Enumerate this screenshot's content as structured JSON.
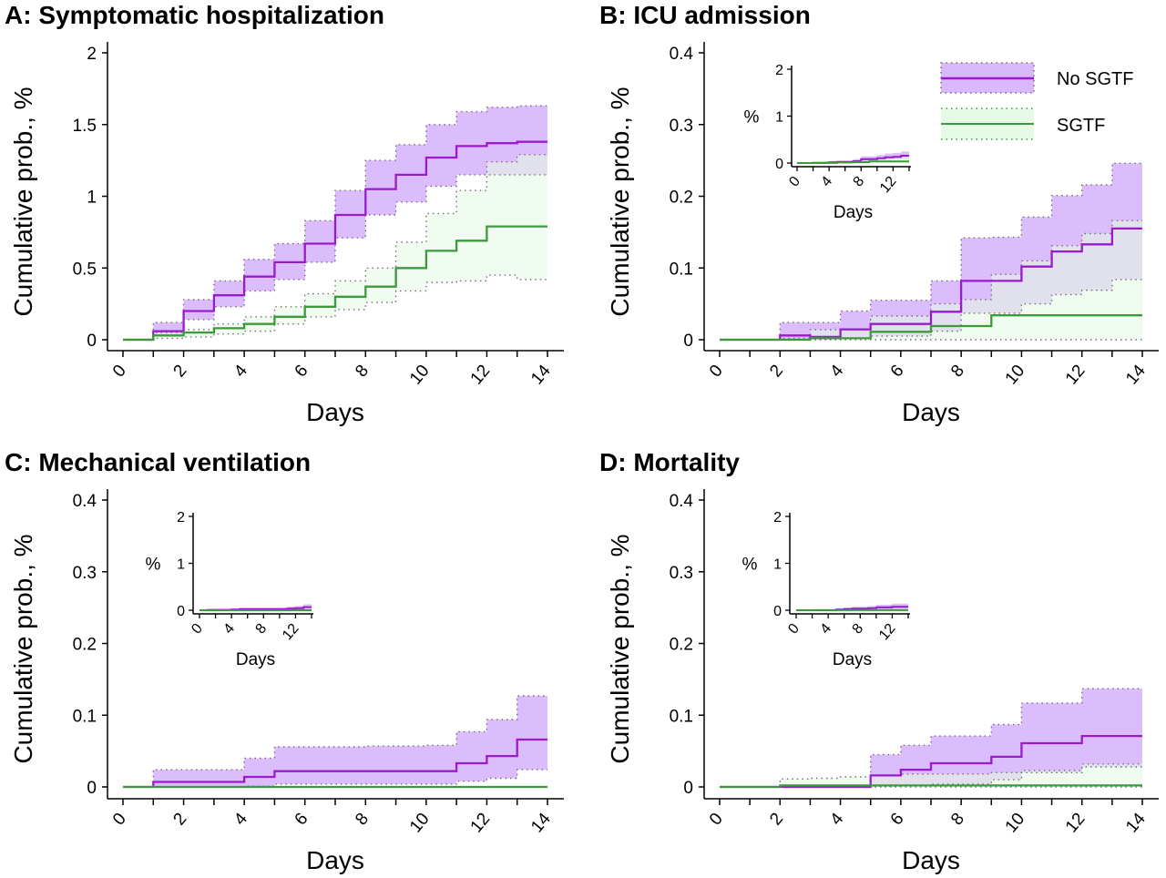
{
  "legend": {
    "items": [
      "No SGTF",
      "SGTF"
    ],
    "placement": "top-right of panel B"
  },
  "colors": {
    "no_sgtf_line": "#9a1bcc",
    "no_sgtf_fill": "#d9b8fc",
    "sgtf_line": "#3c9a3c",
    "sgtf_fill": "#e4fae4",
    "ci_dotted": "#7a6a7a"
  },
  "chart_data": [
    {
      "type": "line",
      "step": true,
      "title": "A: Symptomatic hospitalization",
      "xlabel": "Days",
      "ylabel": "Cumulative prob., %",
      "xlim": [
        0,
        14
      ],
      "ylim": [
        0,
        2
      ],
      "xticks": [
        0,
        1,
        2,
        3,
        4,
        5,
        6,
        7,
        8,
        9,
        10,
        11,
        12,
        13,
        14
      ],
      "xticklabels": [
        "0",
        "2",
        "4",
        "6",
        "8",
        "10",
        "12",
        "14"
      ],
      "yticks": [
        0,
        0.5,
        1,
        1.5,
        2
      ],
      "yticklabels": [
        "0",
        "0.5",
        "1",
        "1.5",
        "2"
      ],
      "x": [
        0,
        1,
        2,
        3,
        4,
        5,
        6,
        7,
        8,
        9,
        10,
        11,
        12,
        13
      ],
      "series": [
        {
          "name": "No SGTF",
          "values": [
            0,
            0.06,
            0.2,
            0.31,
            0.44,
            0.54,
            0.67,
            0.87,
            1.05,
            1.15,
            1.27,
            1.35,
            1.37,
            1.38
          ],
          "upper": [
            0,
            0.12,
            0.28,
            0.41,
            0.56,
            0.67,
            0.83,
            1.04,
            1.25,
            1.36,
            1.5,
            1.59,
            1.62,
            1.63
          ],
          "lower": [
            0,
            0.03,
            0.14,
            0.23,
            0.34,
            0.42,
            0.54,
            0.71,
            0.87,
            0.96,
            1.07,
            1.15,
            1.15,
            1.15
          ]
        },
        {
          "name": "SGTF",
          "values": [
            0,
            0.03,
            0.05,
            0.08,
            0.11,
            0.16,
            0.23,
            0.3,
            0.37,
            0.5,
            0.62,
            0.69,
            0.79,
            0.79
          ],
          "upper": [
            0,
            0.05,
            0.07,
            0.11,
            0.16,
            0.23,
            0.32,
            0.41,
            0.5,
            0.68,
            0.88,
            1.04,
            1.24,
            1.29
          ],
          "lower": [
            0,
            0.01,
            0.02,
            0.04,
            0.06,
            0.11,
            0.16,
            0.21,
            0.26,
            0.34,
            0.4,
            0.41,
            0.45,
            0.42
          ]
        }
      ]
    },
    {
      "type": "line",
      "step": true,
      "title": "B: ICU admission",
      "xlabel": "Days",
      "ylabel": "Cumulative prob., %",
      "xlim": [
        0,
        14
      ],
      "ylim": [
        0,
        0.4
      ],
      "xticks": [
        0,
        1,
        2,
        3,
        4,
        5,
        6,
        7,
        8,
        9,
        10,
        11,
        12,
        13,
        14
      ],
      "xticklabels": [
        "0",
        "2",
        "4",
        "6",
        "8",
        "10",
        "12",
        "14"
      ],
      "yticks": [
        0,
        0.1,
        0.2,
        0.3,
        0.4
      ],
      "yticklabels": [
        "0",
        "0.1",
        "0.2",
        "0.3",
        "0.4"
      ],
      "inset": {
        "ylabel": "%",
        "xlabel": "Days",
        "ylim": [
          0,
          2
        ],
        "yticklabels": [
          "0",
          "1",
          "2"
        ],
        "xticklabels": [
          "0",
          "4",
          "8",
          "12"
        ]
      },
      "x": [
        0,
        1,
        2,
        3,
        4,
        5,
        6,
        7,
        8,
        9,
        10,
        11,
        12,
        13
      ],
      "series": [
        {
          "name": "No SGTF",
          "values": [
            0,
            0,
            0.006,
            0.004,
            0.0145,
            0.022,
            0.022,
            0.039,
            0.082,
            0.082,
            0.102,
            0.123,
            0.133,
            0.155
          ],
          "upper": [
            0,
            0,
            0.024,
            0.024,
            0.04,
            0.055,
            0.055,
            0.082,
            0.142,
            0.143,
            0.171,
            0.201,
            0.216,
            0.246
          ],
          "lower": [
            0,
            0,
            0,
            0.001,
            0.002,
            0.005,
            0.005,
            0.012,
            0.037,
            0.037,
            0.05,
            0.063,
            0.069,
            0.084
          ]
        },
        {
          "name": "SGTF",
          "values": [
            0,
            0,
            0,
            0.002,
            0.002,
            0.011,
            0.011,
            0.019,
            0.019,
            0.034,
            0.034,
            0.034,
            0.034,
            0.034
          ],
          "upper": [
            0,
            0,
            0.002,
            0.014,
            0.014,
            0.033,
            0.033,
            0.05,
            0.056,
            0.091,
            0.11,
            0.131,
            0.148,
            0.166
          ],
          "lower": [
            0,
            0,
            0,
            0,
            0,
            0,
            0,
            0,
            0,
            0,
            0,
            0,
            0,
            0
          ]
        }
      ]
    },
    {
      "type": "line",
      "step": true,
      "title": "C: Mechanical ventilation",
      "xlabel": "Days",
      "ylabel": "Cumulative prob., %",
      "xlim": [
        0,
        14
      ],
      "ylim": [
        0,
        0.4
      ],
      "xticks": [
        0,
        1,
        2,
        3,
        4,
        5,
        6,
        7,
        8,
        9,
        10,
        11,
        12,
        13,
        14
      ],
      "xticklabels": [
        "0",
        "2",
        "4",
        "6",
        "8",
        "10",
        "12",
        "14"
      ],
      "yticks": [
        0,
        0.1,
        0.2,
        0.3,
        0.4
      ],
      "yticklabels": [
        "0",
        "0.1",
        "0.2",
        "0.3",
        "0.4"
      ],
      "inset": {
        "ylabel": "%",
        "xlabel": "Days",
        "ylim": [
          0,
          2
        ],
        "yticklabels": [
          "0",
          "1",
          "2"
        ],
        "xticklabels": [
          "0",
          "4",
          "8",
          "12"
        ]
      },
      "x": [
        0,
        1,
        2,
        3,
        4,
        5,
        6,
        7,
        8,
        9,
        10,
        11,
        12,
        13
      ],
      "series": [
        {
          "name": "No SGTF",
          "values": [
            0,
            0.007,
            0.007,
            0.007,
            0.014,
            0.022,
            0.022,
            0.022,
            0.022,
            0.022,
            0.022,
            0.033,
            0.043,
            0.066
          ],
          "upper": [
            0,
            0.024,
            0.024,
            0.024,
            0.04,
            0.056,
            0.056,
            0.056,
            0.057,
            0.057,
            0.058,
            0.077,
            0.094,
            0.127
          ],
          "lower": [
            0,
            0,
            0,
            0,
            0.001,
            0.004,
            0.004,
            0.004,
            0.004,
            0.004,
            0.004,
            0.008,
            0.012,
            0.024
          ]
        },
        {
          "name": "SGTF",
          "values": [
            0,
            0,
            0,
            0,
            0,
            0,
            0,
            0,
            0,
            0,
            0,
            0,
            0,
            0
          ],
          "upper": [
            0,
            0,
            0,
            0,
            0,
            0,
            0,
            0,
            0,
            0,
            0,
            0,
            0,
            0
          ],
          "lower": [
            0,
            0,
            0,
            0,
            0,
            0,
            0,
            0,
            0,
            0,
            0,
            0,
            0,
            0
          ]
        }
      ]
    },
    {
      "type": "line",
      "step": true,
      "title": "D: Mortality",
      "xlabel": "Days",
      "ylabel": "Cumulative prob., %",
      "xlim": [
        0,
        14
      ],
      "ylim": [
        0,
        0.4
      ],
      "xticks": [
        0,
        1,
        2,
        3,
        4,
        5,
        6,
        7,
        8,
        9,
        10,
        11,
        12,
        13,
        14
      ],
      "xticklabels": [
        "0",
        "2",
        "4",
        "6",
        "8",
        "10",
        "12",
        "14"
      ],
      "yticks": [
        0,
        0.1,
        0.2,
        0.3,
        0.4
      ],
      "yticklabels": [
        "0",
        "0.1",
        "0.2",
        "0.3",
        "0.4"
      ],
      "inset": {
        "ylabel": "%",
        "xlabel": "Days",
        "ylim": [
          0,
          2
        ],
        "yticklabels": [
          "0",
          "1",
          "2"
        ],
        "xticklabels": [
          "0",
          "4",
          "8",
          "12"
        ]
      },
      "x": [
        0,
        1,
        2,
        3,
        4,
        5,
        6,
        7,
        8,
        9,
        10,
        11,
        12,
        13
      ],
      "series": [
        {
          "name": "No SGTF",
          "values": [
            0,
            0,
            0,
            0,
            0,
            0.016,
            0.024,
            0.033,
            0.033,
            0.042,
            0.061,
            0.061,
            0.071,
            0.071
          ],
          "upper": [
            0,
            0,
            0,
            0,
            0,
            0.045,
            0.058,
            0.071,
            0.071,
            0.087,
            0.117,
            0.117,
            0.137,
            0.137
          ],
          "lower": [
            0,
            0,
            0,
            0,
            0,
            0.001,
            0.002,
            0.004,
            0.004,
            0.01,
            0.02,
            0.02,
            0.028,
            0.028
          ]
        },
        {
          "name": "SGTF",
          "values": [
            0,
            0,
            0.002,
            0.002,
            0.002,
            0.002,
            0.002,
            0.002,
            0.002,
            0.002,
            0.002,
            0.002,
            0.002,
            0.002
          ],
          "upper": [
            0,
            0,
            0.011,
            0.012,
            0.014,
            0.016,
            0.018,
            0.018,
            0.018,
            0.02,
            0.023,
            0.023,
            0.032,
            0.032
          ],
          "lower": [
            0,
            0,
            0,
            0,
            0,
            0,
            0,
            0,
            0,
            0,
            0,
            0,
            0,
            0
          ]
        }
      ]
    }
  ]
}
